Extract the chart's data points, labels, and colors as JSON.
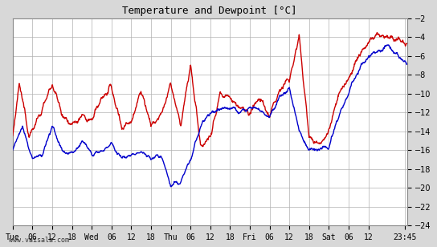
{
  "title": "Temperature and Dewpoint [°C]",
  "ylabel_right": true,
  "ylim": [
    -24,
    -2
  ],
  "yticks": [
    -24,
    -22,
    -20,
    -18,
    -16,
    -14,
    -12,
    -10,
    -8,
    -6,
    -4,
    -2
  ],
  "x_tick_labels": [
    "Tue",
    "06",
    "12",
    "18",
    "Wed",
    "06",
    "12",
    "18",
    "Thu",
    "06",
    "12",
    "18",
    "Fri",
    "06",
    "12",
    "18",
    "Sat",
    "06",
    "12",
    "23:45"
  ],
  "x_tick_positions": [
    0,
    6,
    12,
    18,
    24,
    30,
    36,
    42,
    48,
    54,
    60,
    66,
    72,
    78,
    84,
    90,
    96,
    102,
    108,
    119
  ],
  "footer": "www.vaisala.com",
  "bg_color": "#d8d8d8",
  "plot_bg_color": "#ffffff",
  "grid_color": "#b0b0b0",
  "line_color_temp": "#cc0000",
  "line_color_dew": "#0000cc",
  "line_width": 1.0
}
